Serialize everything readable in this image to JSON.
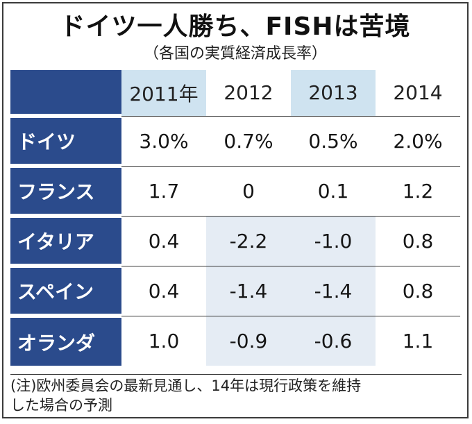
{
  "title": "ドイツ一人勝ち、FISHは苦境",
  "subtitle": "（各国の実質経済成長率）",
  "note_line1": "(注)欧州委員会の最新見通し、14年は現行政策を維持",
  "note_line2": "した場合の予測",
  "colors": {
    "label_bg": "#2b4b8c",
    "header_bg": "#cfe3f0",
    "negative_bg": "#e5ecf4"
  },
  "chart_data": {
    "type": "table",
    "title": "ドイツ一人勝ち、FISHは苦境",
    "subtitle": "（各国の実質経済成長率）",
    "columns": [
      "2011年",
      "2012",
      "2013",
      "2014"
    ],
    "rows": [
      {
        "label": "ドイツ",
        "values": [
          "3.0%",
          "0.7%",
          "0.5%",
          "2.0%"
        ]
      },
      {
        "label": "フランス",
        "values": [
          "1.7",
          "0",
          "0.1",
          "1.2"
        ]
      },
      {
        "label": "イタリア",
        "values": [
          "0.4",
          "-2.2",
          "-1.0",
          "0.8"
        ]
      },
      {
        "label": "スペイン",
        "values": [
          "0.4",
          "-1.4",
          "-1.4",
          "0.8"
        ]
      },
      {
        "label": "オランダ",
        "values": [
          "1.0",
          "-0.9",
          "-0.6",
          "1.1"
        ]
      }
    ],
    "note": "(注)欧州委員会の最新見通し、14年は現行政策を維持した場合の予測"
  }
}
